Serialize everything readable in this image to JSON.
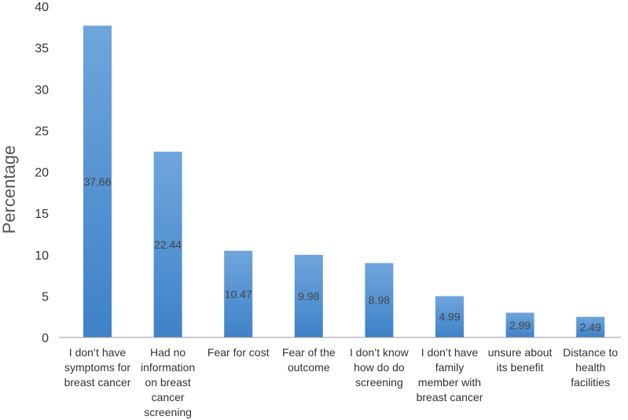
{
  "chart_data": {
    "type": "bar",
    "categories": [
      [
        "I don’t have",
        "symptoms for",
        "breast cancer"
      ],
      [
        "Had no",
        "information",
        "on breast",
        "cancer",
        "screening"
      ],
      [
        "Fear for cost"
      ],
      [
        "Fear of the",
        "outcome"
      ],
      [
        "I don’t know",
        "how do do",
        "screening"
      ],
      [
        "I don’t have",
        "family",
        "member with",
        "breast cancer"
      ],
      [
        "unsure about",
        "its benefit"
      ],
      [
        "Distance  to",
        "health",
        "facilities"
      ]
    ],
    "values": [
      37.66,
      22.44,
      10.47,
      9.98,
      8.98,
      4.99,
      2.99,
      2.49
    ],
    "data_labels": [
      "37.66",
      "22.44",
      "10.47",
      "9.98",
      "8.98",
      "4.99",
      "2.99",
      "2.49"
    ],
    "ylabel": "Percentage",
    "ylim": [
      0,
      40
    ],
    "yticks": [
      0,
      5,
      10,
      15,
      20,
      25,
      30,
      35,
      40
    ],
    "grid": false,
    "colors": {
      "bar_top": "#6fa5dc",
      "bar_bottom": "#3f82c8",
      "axis": "#999999"
    }
  }
}
